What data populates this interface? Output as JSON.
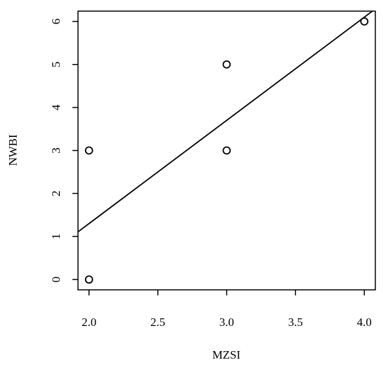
{
  "chart_data": {
    "type": "scatter",
    "xlabel": "MZSI",
    "ylabel": "NWBI",
    "xlim": [
      1.92,
      4.08
    ],
    "ylim": [
      -0.24,
      6.24
    ],
    "x_ticks": [
      "2.0",
      "2.5",
      "3.0",
      "3.5",
      "4.0"
    ],
    "x_tick_values": [
      2.0,
      2.5,
      3.0,
      3.5,
      4.0
    ],
    "y_ticks": [
      "0",
      "1",
      "2",
      "3",
      "4",
      "5",
      "6"
    ],
    "y_tick_values": [
      0,
      1,
      2,
      3,
      4,
      5,
      6
    ],
    "points": [
      {
        "x": 2.0,
        "y": 0
      },
      {
        "x": 2.0,
        "y": 3
      },
      {
        "x": 3.0,
        "y": 3
      },
      {
        "x": 3.0,
        "y": 5
      },
      {
        "x": 4.0,
        "y": 6
      }
    ],
    "fit_line": {
      "slope": 2.4,
      "intercept": -3.5
    },
    "grid": false,
    "legend": "none"
  }
}
